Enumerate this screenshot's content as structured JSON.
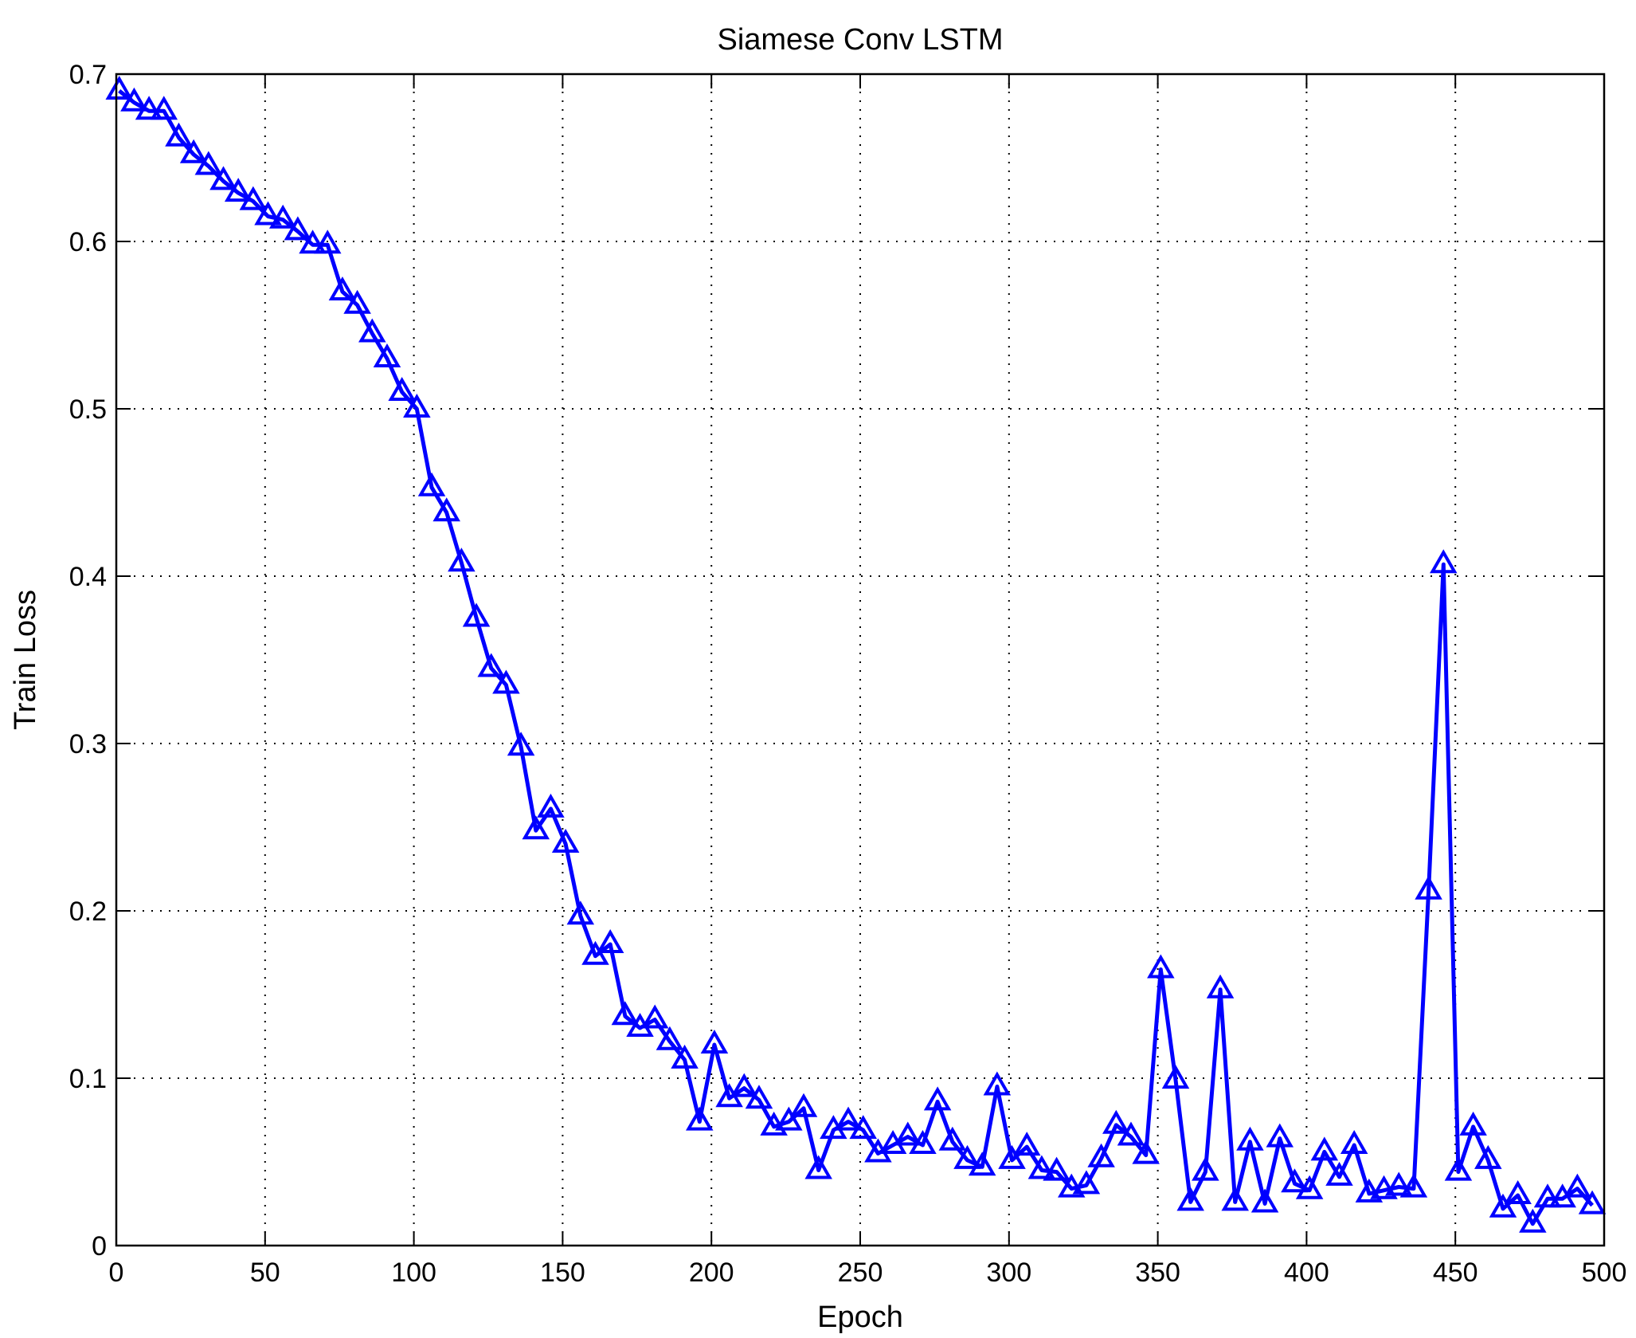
{
  "chart_data": {
    "type": "line",
    "title": "Siamese Conv LSTM",
    "xlabel": "Epoch",
    "ylabel": "Train Loss",
    "xlim": [
      0,
      500
    ],
    "ylim": [
      0,
      0.7
    ],
    "xticks": [
      "0",
      "50",
      "100",
      "150",
      "200",
      "250",
      "300",
      "350",
      "400",
      "450",
      "500"
    ],
    "yticks": [
      "0",
      "0.1",
      "0.2",
      "0.3",
      "0.4",
      "0.5",
      "0.6",
      "0.7"
    ],
    "grid": true,
    "marker": "triangle",
    "color": "#0000ff",
    "series": [
      {
        "x": [
          1,
          6,
          11,
          16,
          21,
          26,
          31,
          36,
          41,
          46,
          51,
          56,
          61,
          66,
          71,
          76,
          81,
          86,
          91,
          96,
          101,
          106,
          111,
          116,
          121,
          126,
          131,
          136,
          141,
          146,
          151,
          156,
          161,
          166,
          171,
          176,
          181,
          186,
          191,
          196,
          201,
          206,
          211,
          216,
          221,
          226,
          231,
          236,
          241,
          246,
          251,
          256,
          261,
          266,
          271,
          276,
          281,
          286,
          291,
          296,
          301,
          306,
          311,
          316,
          321,
          326,
          331,
          336,
          341,
          346,
          351,
          356,
          361,
          366,
          371,
          376,
          381,
          386,
          391,
          396,
          401,
          406,
          411,
          416,
          421,
          426,
          431,
          436,
          441,
          446,
          451,
          456,
          461,
          466,
          471,
          476,
          481,
          486,
          491,
          496
        ],
        "values": [
          0.69,
          0.683,
          0.678,
          0.678,
          0.662,
          0.652,
          0.645,
          0.636,
          0.629,
          0.624,
          0.615,
          0.613,
          0.606,
          0.598,
          0.598,
          0.57,
          0.562,
          0.545,
          0.53,
          0.51,
          0.5,
          0.453,
          0.438,
          0.408,
          0.375,
          0.345,
          0.335,
          0.298,
          0.248,
          0.261,
          0.24,
          0.197,
          0.173,
          0.18,
          0.137,
          0.13,
          0.135,
          0.122,
          0.111,
          0.074,
          0.12,
          0.088,
          0.094,
          0.087,
          0.071,
          0.074,
          0.082,
          0.045,
          0.069,
          0.074,
          0.069,
          0.055,
          0.06,
          0.065,
          0.06,
          0.086,
          0.062,
          0.051,
          0.047,
          0.095,
          0.051,
          0.059,
          0.045,
          0.044,
          0.034,
          0.036,
          0.052,
          0.072,
          0.065,
          0.054,
          0.165,
          0.099,
          0.026,
          0.044,
          0.153,
          0.026,
          0.062,
          0.025,
          0.064,
          0.037,
          0.033,
          0.056,
          0.041,
          0.06,
          0.031,
          0.033,
          0.035,
          0.034,
          0.212,
          0.407,
          0.044,
          0.071,
          0.051,
          0.022,
          0.03,
          0.013,
          0.028,
          0.028,
          0.034,
          0.024
        ]
      }
    ]
  }
}
